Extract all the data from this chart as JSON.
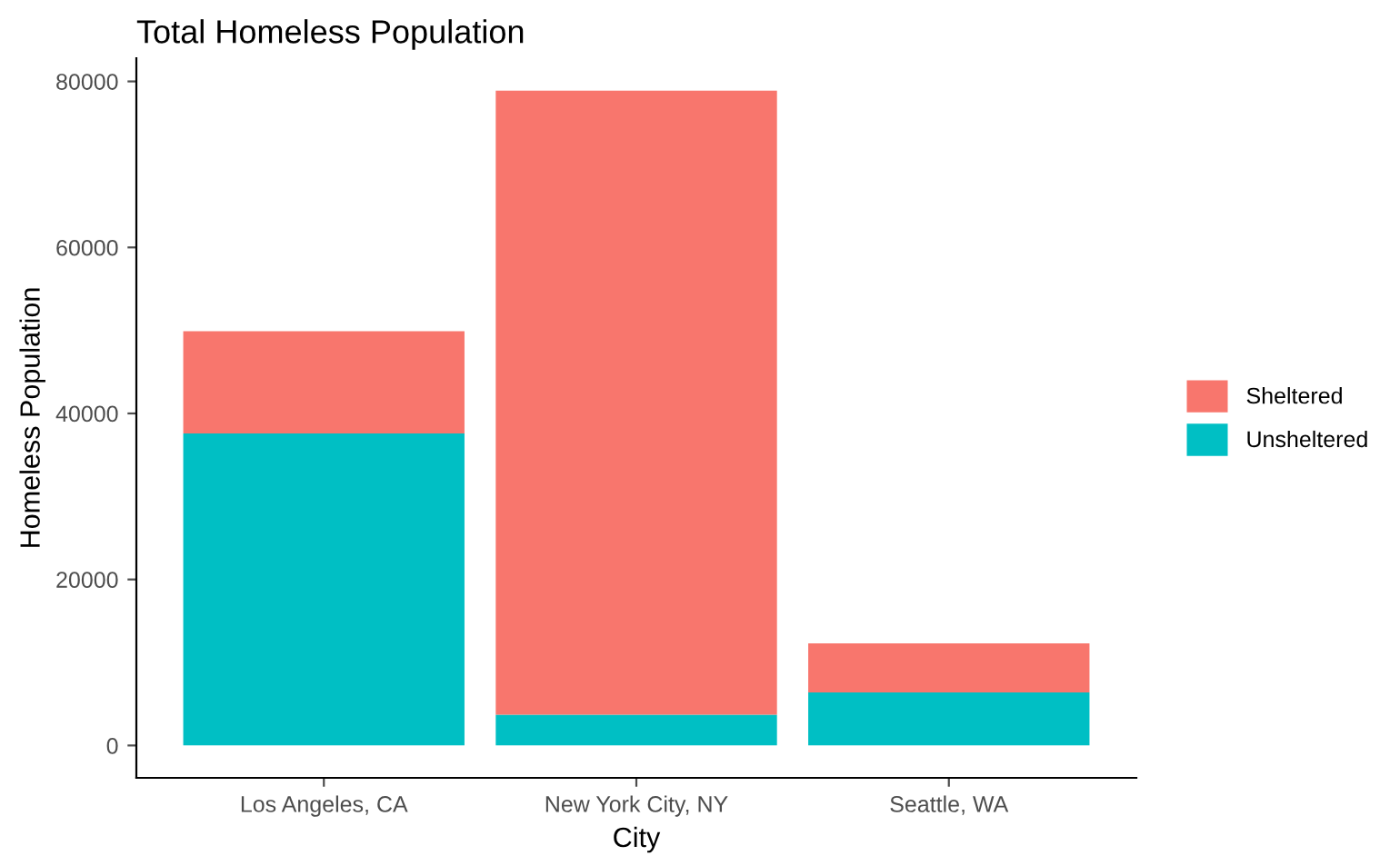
{
  "chart_data": {
    "type": "bar",
    "title": "Total Homeless Population",
    "xlabel": "City",
    "ylabel": "Homeless Population",
    "categories": [
      "Los Angeles, CA",
      "New York City, NY",
      "Seattle, WA"
    ],
    "stacked": true,
    "series": [
      {
        "name": "Unsheltered",
        "color": "#00bfc4",
        "values": [
          37600,
          3700,
          6400
        ]
      },
      {
        "name": "Sheltered",
        "color": "#f8766d",
        "values": [
          12300,
          75200,
          5900
        ]
      }
    ],
    "ylim": [
      -3900,
      82800
    ],
    "yticks": [
      0,
      20000,
      40000,
      60000,
      80000
    ],
    "grid": false,
    "legend": "right"
  }
}
